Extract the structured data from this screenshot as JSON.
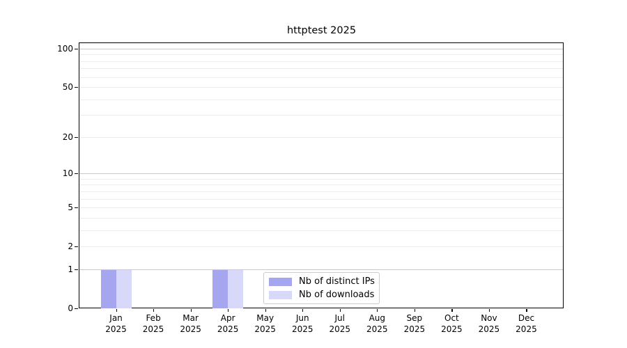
{
  "title": "httptest 2025",
  "chart_data": {
    "type": "bar",
    "title": "httptest 2025",
    "categories": [
      "Jan",
      "Feb",
      "Mar",
      "Apr",
      "May",
      "Jun",
      "Jul",
      "Aug",
      "Sep",
      "Oct",
      "Nov",
      "Dec"
    ],
    "category_year": "2025",
    "series": [
      {
        "name": "Nb of distinct IPs",
        "color": "#a5a5f0",
        "values": [
          1,
          0,
          0,
          1,
          0,
          0,
          0,
          0,
          0,
          0,
          0,
          0
        ]
      },
      {
        "name": "Nb of downloads",
        "color": "#d8d8f8",
        "values": [
          1,
          0,
          0,
          1,
          0,
          0,
          0,
          0,
          0,
          0,
          0,
          0
        ]
      }
    ],
    "xlabel": "",
    "ylabel": "",
    "yscale": "log1p",
    "ylim": [
      0,
      112
    ],
    "y_ticks": [
      0,
      1,
      2,
      5,
      10,
      20,
      50,
      100
    ],
    "y_major_gridlines": [
      1,
      10,
      100
    ],
    "y_minor_gridlines": [
      2,
      3,
      4,
      5,
      6,
      7,
      8,
      9,
      20,
      30,
      40,
      50,
      60,
      70,
      80,
      90
    ],
    "grid": true,
    "legend_position": "lower center",
    "colors": {
      "background": "#ffffff",
      "axis_border": "#000000",
      "major_grid": "#c8c8c8",
      "minor_grid": "#ededed",
      "text": "#000000",
      "legend_border": "#cccccc"
    }
  }
}
